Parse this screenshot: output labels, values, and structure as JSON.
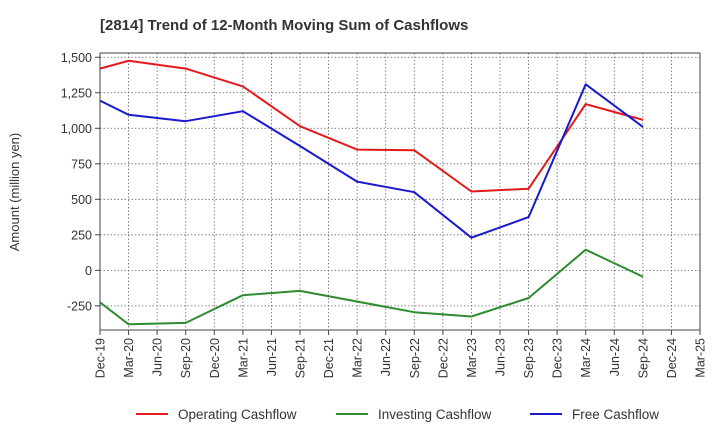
{
  "chart_data": {
    "type": "line",
    "title": "[2814]  Trend of 12-Month Moving Sum of Cashflows",
    "xlabel": "",
    "ylabel": "Amount (million yen)",
    "categories": [
      "Dec-19",
      "Mar-20",
      "Jun-20",
      "Sep-20",
      "Dec-20",
      "Mar-21",
      "Jun-21",
      "Sep-21",
      "Dec-21",
      "Mar-22",
      "Jun-22",
      "Sep-22",
      "Dec-22",
      "Mar-23",
      "Jun-23",
      "Sep-23",
      "Dec-23",
      "Mar-24",
      "Jun-24",
      "Sep-24",
      "Dec-24",
      "Mar-25"
    ],
    "ylim": [
      -420,
      1530
    ],
    "yticks": [
      1500,
      1250,
      1000,
      750,
      500,
      250,
      0,
      -250
    ],
    "ytick_labels": [
      "1,500",
      "1,250",
      "1,000",
      "750",
      "500",
      "250",
      "0",
      "-250"
    ],
    "grid": true,
    "legend_position": "bottom",
    "series": [
      {
        "name": "Operating Cashflow",
        "color": "#e31a1c",
        "values": [
          1420,
          1475,
          null,
          1420,
          null,
          1295,
          null,
          1015,
          null,
          850,
          null,
          845,
          null,
          555,
          null,
          575,
          null,
          1170,
          null,
          1060,
          null,
          null
        ]
      },
      {
        "name": "Investing Cashflow",
        "color": "#2e8b2e",
        "values": [
          -225,
          -380,
          null,
          -370,
          null,
          -175,
          null,
          -145,
          null,
          null,
          null,
          -295,
          null,
          -325,
          null,
          -195,
          null,
          145,
          null,
          -45,
          null,
          null
        ]
      },
      {
        "name": "Free Cashflow",
        "color": "#1a1acd",
        "values": [
          1195,
          1095,
          null,
          1050,
          null,
          1120,
          null,
          875,
          null,
          625,
          null,
          550,
          null,
          230,
          null,
          375,
          null,
          1310,
          null,
          1010,
          null,
          null
        ]
      }
    ]
  }
}
